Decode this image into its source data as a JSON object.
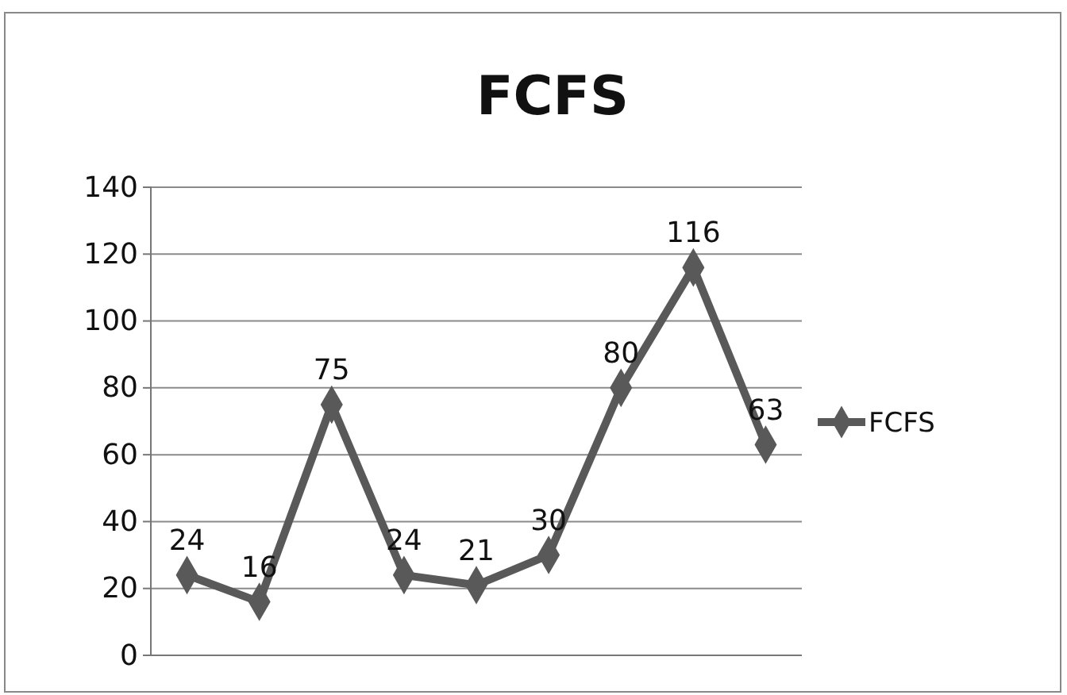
{
  "chart_data": {
    "type": "line",
    "title": "FCFS",
    "categories": [
      null,
      null,
      null,
      null,
      null,
      null,
      null,
      null,
      null
    ],
    "series": [
      {
        "name": "FCFS",
        "color": "#595959",
        "values": [
          24,
          16,
          75,
          24,
          21,
          30,
          80,
          116,
          63
        ]
      }
    ],
    "ylim": [
      0,
      140
    ],
    "yticks": [
      0,
      20,
      40,
      60,
      80,
      100,
      120,
      140
    ],
    "grid": "y",
    "legend": "right",
    "marker": "diamond",
    "data_labels": true
  }
}
